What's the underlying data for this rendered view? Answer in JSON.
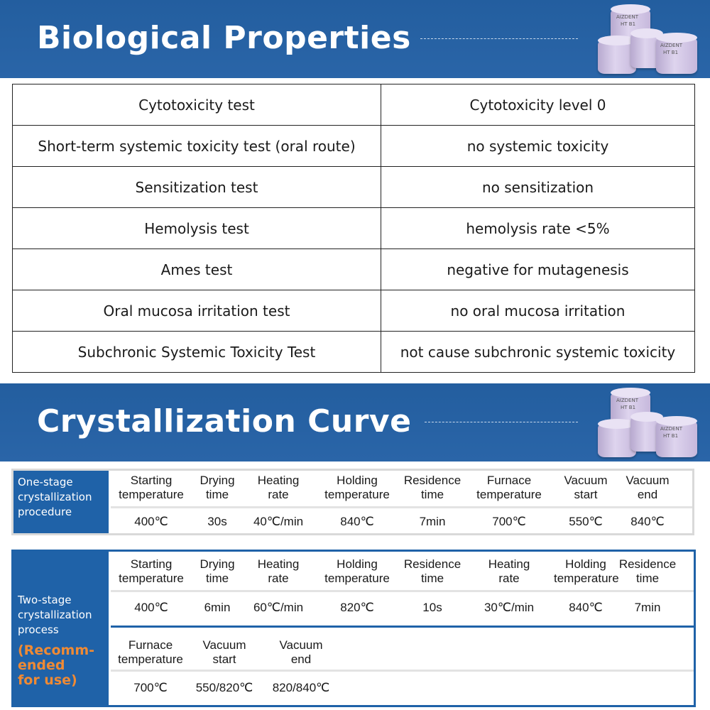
{
  "section_biological": {
    "title": "Biological Properties",
    "rows": [
      {
        "test": "Cytotoxicity test",
        "result": "Cytotoxicity level 0"
      },
      {
        "test": "Short-term systemic toxicity test (oral route)",
        "result": "no systemic toxicity"
      },
      {
        "test": "Sensitization test",
        "result": "no sensitization"
      },
      {
        "test": "Hemolysis test",
        "result": "hemolysis rate <5%"
      },
      {
        "test": "Ames test",
        "result": "negative for mutagenesis"
      },
      {
        "test": "Oral mucosa irritation test",
        "result": "no oral mucosa irritation"
      },
      {
        "test": "Subchronic Systemic Toxicity Test",
        "result": "not cause subchronic systemic toxicity"
      }
    ]
  },
  "section_crystallization": {
    "title": "Crystallization Curve",
    "one_stage": {
      "label_lines": [
        "One-stage",
        "crystallization",
        "procedure"
      ],
      "headers": [
        [
          "Starting",
          "temperature"
        ],
        [
          "Drying",
          "time"
        ],
        [
          "Heating",
          "rate"
        ],
        [
          "Holding",
          "temperature"
        ],
        [
          "Residence",
          "time"
        ],
        [
          "Furnace",
          "temperature"
        ],
        [
          "Vacuum",
          "start"
        ],
        [
          "Vacuum",
          "end"
        ]
      ],
      "values": [
        "400℃",
        "30s",
        "40℃/min",
        "840℃",
        "7min",
        "700℃",
        "550℃",
        "840℃"
      ]
    },
    "two_stage": {
      "label_lines": [
        "Two-stage",
        "crystallization",
        "process"
      ],
      "recommend_lines": [
        "(Recomm-",
        "ended",
        "for use)"
      ],
      "headers_row1": [
        [
          "Starting",
          "temperature"
        ],
        [
          "Drying",
          "time"
        ],
        [
          "Heating",
          "rate"
        ],
        [
          "Holding",
          "temperature"
        ],
        [
          "Residence",
          "time"
        ],
        [
          "Heating",
          "rate"
        ],
        [
          "Holding",
          "temperature"
        ],
        [
          "Residence",
          "time"
        ]
      ],
      "values_row1": [
        "400℃",
        "6min",
        "60℃/min",
        "820℃",
        "10s",
        "30℃/min",
        "840℃",
        "7min"
      ],
      "headers_row2": [
        [
          "Furnace",
          "temperature"
        ],
        [
          "Vacuum",
          "start"
        ],
        [
          "Vacuum",
          "end"
        ]
      ],
      "values_row2": [
        "700℃",
        "550/820℃",
        "820/840℃"
      ]
    }
  },
  "product_image": {
    "brand_text": "AIZDENT",
    "shade_text": "HT B1",
    "color": "#d9cfe9"
  },
  "colors": {
    "banner_blue": "#235e9f",
    "label_blue": "#1f62a8",
    "recommend_orange": "#ef8a34"
  }
}
